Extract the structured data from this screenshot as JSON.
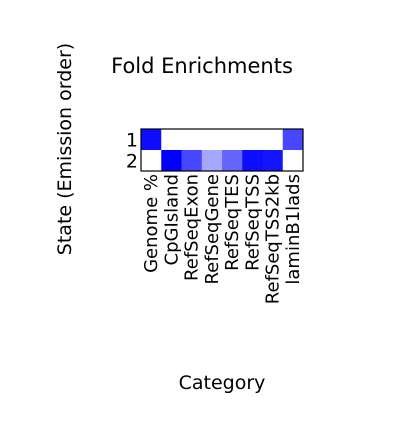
{
  "chart_data": {
    "type": "heatmap",
    "title": "Fold Enrichments",
    "xlabel": "Category",
    "ylabel": "State (Emission order)",
    "categories": [
      "Genome %",
      "CpGIsland",
      "RefSeqExon",
      "RefSeqGene",
      "RefSeqTES",
      "RefSeqTSS",
      "RefSeqTSS2kb",
      "laminB1lads"
    ],
    "states": [
      "1",
      "2"
    ],
    "values": [
      [
        0.95,
        0.0,
        0.0,
        0.0,
        0.0,
        0.0,
        0.0,
        0.72
      ],
      [
        0.0,
        1.0,
        0.72,
        0.35,
        0.6,
        0.95,
        0.92,
        0.0
      ]
    ],
    "colormap": {
      "low": "#ffffff",
      "high": "#0000ff"
    },
    "grid": false
  }
}
